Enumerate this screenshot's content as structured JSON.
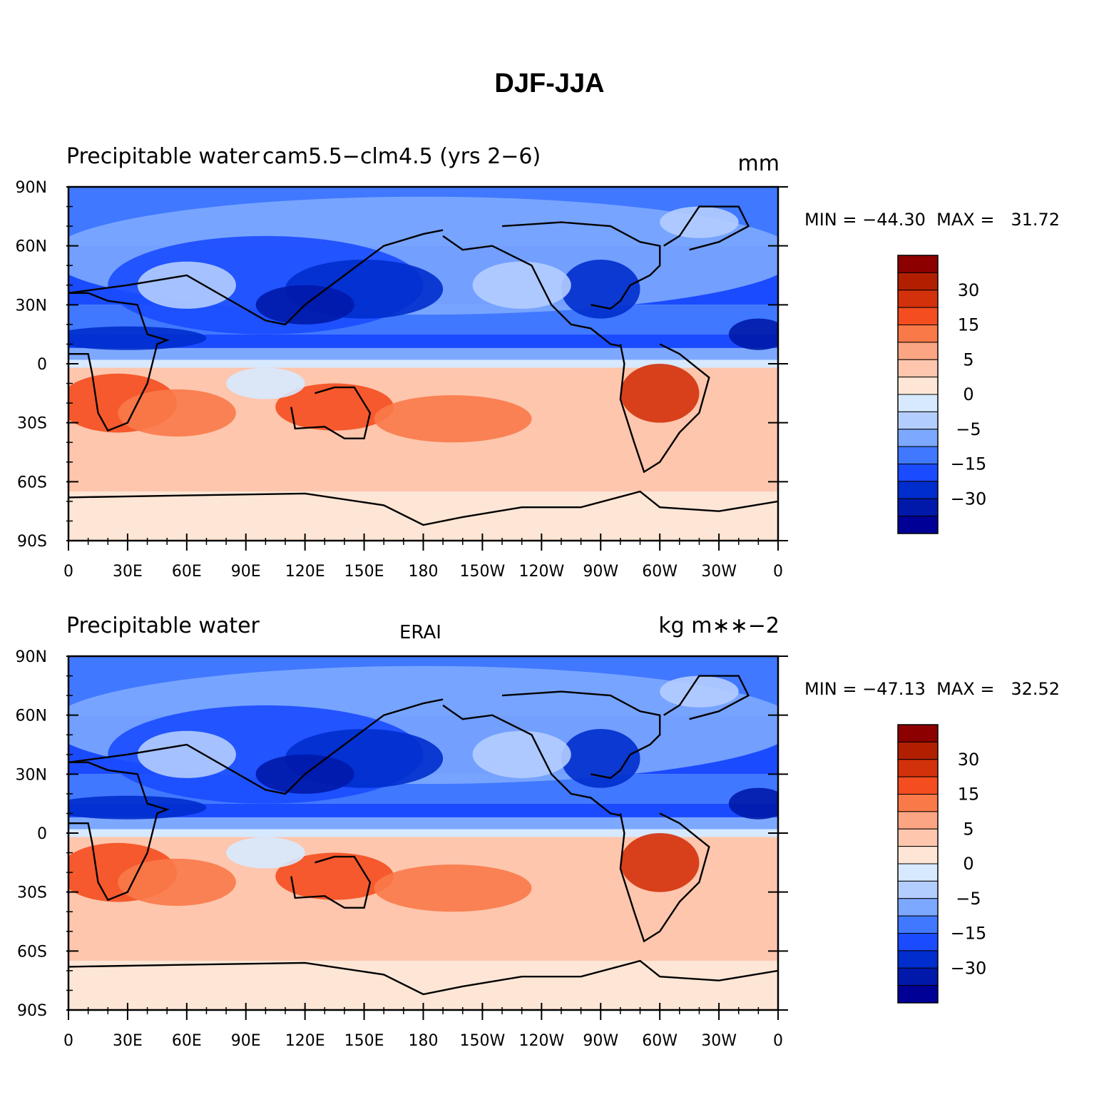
{
  "title": "DJF-JJA",
  "color_scale": {
    "fills": [
      "#000096",
      "#0019aa",
      "#002dcd",
      "#1a4bff",
      "#4078ff",
      "#7da8ff",
      "#b4cdff",
      "#d7e9ff",
      "#fde6d5",
      "#fdc6ad",
      "#fba583",
      "#fa7949",
      "#f44d1f",
      "#d3310b",
      "#b11f00",
      "#8c0000"
    ],
    "tick_labels": [
      "30",
      "15",
      "5",
      "0",
      "−5",
      "−15",
      "−30"
    ],
    "tick_boundaries": [
      14,
      12,
      10,
      8,
      6,
      4,
      2
    ]
  },
  "axes": {
    "lat_labels": [
      "90N",
      "60N",
      "30N",
      "0",
      "30S",
      "60S",
      "90S"
    ],
    "lon_labels": [
      "0",
      "30E",
      "60E",
      "90E",
      "120E",
      "150E",
      "180",
      "150W",
      "120W",
      "90W",
      "60W",
      "30W",
      "0"
    ]
  },
  "panels": [
    {
      "left_label": "Precipitable water",
      "center_label": "cam5.5−clm4.5 (yrs 2−6)",
      "right_label": "mm",
      "minmax": "MIN = −44.30  MAX =   31.72",
      "chart_data": {
        "type": "heatmap",
        "xlabel": "",
        "ylabel": "",
        "xlim": [
          0,
          360
        ],
        "ylim": [
          -90,
          90
        ],
        "variable": "Precipitable water difference DJF-JJA",
        "units": "mm",
        "min": -44.3,
        "max": 31.72
      }
    },
    {
      "left_label": "Precipitable water",
      "center_label": "ERAI",
      "right_label": "kg m∗∗−2",
      "minmax": "MIN = −47.13  MAX =   32.52",
      "chart_data": {
        "type": "heatmap",
        "xlabel": "",
        "ylabel": "",
        "xlim": [
          0,
          360
        ],
        "ylim": [
          -90,
          90
        ],
        "variable": "Precipitable water difference DJF-JJA",
        "units": "kg m**-2",
        "min": -47.13,
        "max": 32.52
      }
    }
  ]
}
